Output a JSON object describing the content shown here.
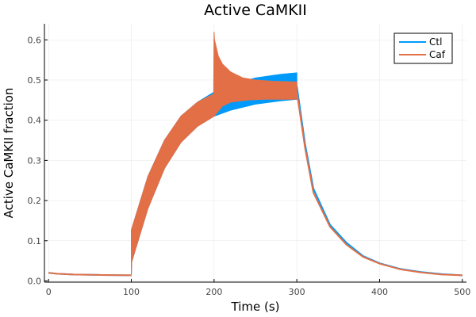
{
  "chart_data": {
    "type": "line",
    "title": "Active CaMKII",
    "xlabel": "Time (s)",
    "ylabel": "Active CaMKII fraction",
    "xlim": [
      -5,
      505
    ],
    "ylim": [
      -0.003,
      0.64
    ],
    "xticks": [
      0,
      100,
      200,
      300,
      400,
      500
    ],
    "yticks": [
      0.0,
      0.1,
      0.2,
      0.3,
      0.4,
      0.5,
      0.6
    ],
    "xtick_labels": [
      "0",
      "100",
      "200",
      "300",
      "400",
      "500"
    ],
    "ytick_labels": [
      "0.0",
      "0.1",
      "0.2",
      "0.3",
      "0.4",
      "0.5",
      "0.6"
    ],
    "grid": true,
    "legend_position": "top-right",
    "series": [
      {
        "name": "Ctl",
        "color": "#009AFA",
        "baseline": {
          "x": [
            0,
            10,
            30,
            60,
            100
          ],
          "y": [
            0.02,
            0.018,
            0.016,
            0.015,
            0.014
          ]
        },
        "band_upper": {
          "x": [
            100,
            100.5,
            120,
            140,
            160,
            180,
            200,
            220,
            250,
            280,
            300
          ],
          "y": [
            0.126,
            0.13,
            0.26,
            0.35,
            0.41,
            0.445,
            0.47,
            0.488,
            0.505,
            0.514,
            0.518
          ]
        },
        "band_lower": {
          "x": [
            100,
            100.5,
            120,
            140,
            160,
            180,
            200,
            220,
            250,
            280,
            300
          ],
          "y": [
            0.014,
            0.048,
            0.18,
            0.28,
            0.345,
            0.385,
            0.41,
            0.425,
            0.44,
            0.448,
            0.452
          ]
        },
        "decay": {
          "x": [
            300,
            310,
            320,
            340,
            360,
            380,
            400,
            425,
            450,
            475,
            500
          ],
          "y": [
            0.485,
            0.34,
            0.23,
            0.14,
            0.095,
            0.062,
            0.044,
            0.03,
            0.022,
            0.017,
            0.014
          ]
        }
      },
      {
        "name": "Caf",
        "color": "#E26F46",
        "baseline": {
          "x": [
            0,
            10,
            30,
            60,
            100
          ],
          "y": [
            0.02,
            0.018,
            0.016,
            0.015,
            0.014
          ]
        },
        "band_upper": {
          "x": [
            100,
            100.5,
            120,
            140,
            160,
            180,
            199.5,
            200,
            200.5,
            205,
            210,
            220,
            235,
            250,
            270,
            300
          ],
          "y": [
            0.126,
            0.13,
            0.26,
            0.35,
            0.41,
            0.445,
            0.465,
            0.62,
            0.6,
            0.56,
            0.54,
            0.52,
            0.505,
            0.5,
            0.497,
            0.495
          ]
        },
        "band_lower": {
          "x": [
            100,
            100.5,
            120,
            140,
            160,
            180,
            200,
            210,
            220,
            240,
            260,
            280,
            300
          ],
          "y": [
            0.014,
            0.048,
            0.18,
            0.28,
            0.345,
            0.385,
            0.41,
            0.435,
            0.445,
            0.45,
            0.452,
            0.452,
            0.452
          ]
        },
        "decay": {
          "x": [
            300,
            310,
            320,
            340,
            360,
            380,
            400,
            425,
            450,
            475,
            500
          ],
          "y": [
            0.47,
            0.33,
            0.22,
            0.135,
            0.09,
            0.06,
            0.043,
            0.029,
            0.021,
            0.016,
            0.014
          ]
        }
      }
    ]
  }
}
